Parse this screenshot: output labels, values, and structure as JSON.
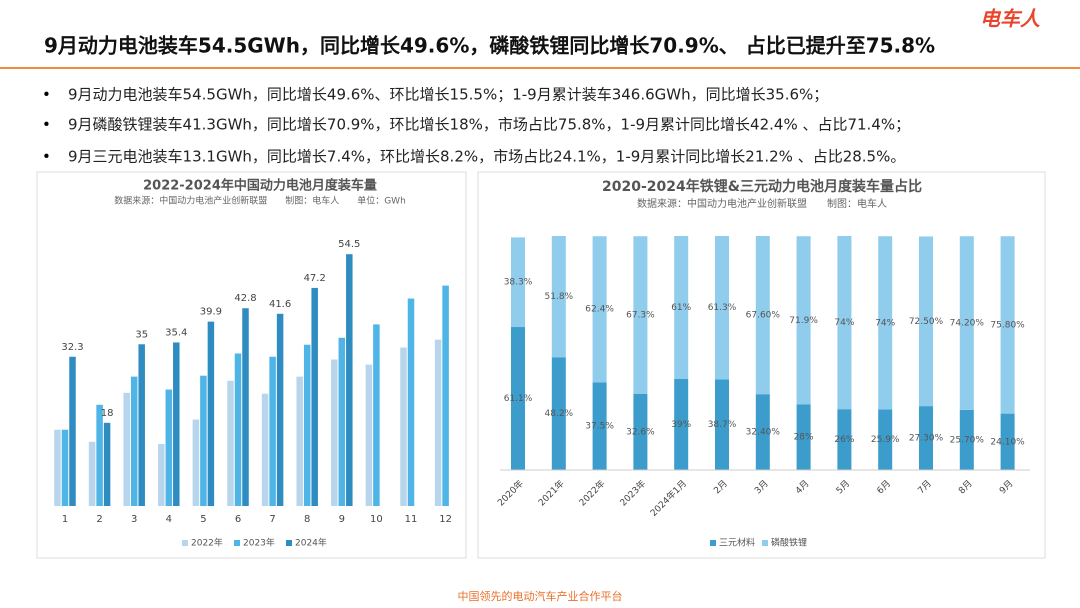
{
  "header": {
    "title": "9月动力电池装车54.5GWh，同比增长49.6%，磷酸铁锂同比增长70.9%、 占比已提升至75.8%",
    "logo": "电车人"
  },
  "bullets": [
    "9月动力电池装车54.5GWh，同比增长49.6%、环比增长15.5%；1-9月累计装车346.6GWh，同比增长35.6%；",
    "9月磷酸铁锂装车41.3GWh，同比增长70.9%，环比增长18%，市场占比75.8%，1-9月累计同比增长42.4% 、占比71.4%；",
    "9月三元电池装车13.1GWh，同比增长7.4%，环比增长8.2%，市场占比24.1%，1-9月累计同比增长21.2% 、占比28.5%。"
  ],
  "footer": "中国领先的电动汽车产业合作平台",
  "chart_data": [
    {
      "type": "bar",
      "title": "2022-2024年中国动力电池月度装车量",
      "subtitle": "数据来源：中国动力电池产业创新联盟　　制图：电车人　　单位：GWh",
      "categories": [
        "1",
        "2",
        "3",
        "4",
        "5",
        "6",
        "7",
        "8",
        "9",
        "10",
        "11",
        "12"
      ],
      "ylim": [
        0,
        58
      ],
      "series": [
        {
          "name": "2022年",
          "color": "#b7d5ec",
          "values": [
            16.5,
            13.9,
            24.5,
            13.4,
            18.7,
            27.1,
            24.3,
            28,
            31.7,
            30.6,
            34.3,
            36
          ]
        },
        {
          "name": "2023年",
          "color": "#4fb4e6",
          "values": [
            16.5,
            21.9,
            28,
            25.2,
            28.2,
            33,
            32.3,
            34.9,
            36.4,
            39.3,
            44.9,
            47.7
          ]
        },
        {
          "name": "2024年",
          "color": "#2f8cc1",
          "show_labels": true,
          "values": [
            32.3,
            18,
            35,
            35.4,
            39.9,
            42.8,
            41.6,
            47.2,
            54.5,
            null,
            null,
            null
          ]
        }
      ]
    },
    {
      "type": "stacked_bar",
      "title": "2020-2024年铁锂&三元动力电池月度装车量占比",
      "subtitle": "数据来源：中国动力电池产业创新联盟　　制图：电车人",
      "categories": [
        "2020年",
        "2021年",
        "2022年",
        "2023年",
        "2024年1月",
        "2月",
        "3月",
        "4月",
        "5月",
        "6月",
        "7月",
        "8月",
        "9月"
      ],
      "ylim": [
        0,
        100
      ],
      "series": [
        {
          "name": "三元材料",
          "color": "#3c9dcd",
          "values": [
            61.1,
            48.2,
            37.5,
            32.6,
            39,
            38.7,
            32.4,
            28,
            26,
            25.9,
            27.3,
            25.7,
            24.1
          ],
          "value_labels": [
            "61.1%",
            "48.2%",
            "37.5%",
            "32.6%",
            "39%",
            "38.7%",
            "32.40%",
            "28%",
            "26%",
            "25.9%",
            "27.30%",
            "25.70%",
            "24.10%"
          ]
        },
        {
          "name": "磷酸铁锂",
          "color": "#90ccec",
          "values": [
            38.3,
            51.8,
            62.4,
            67.3,
            61,
            61.3,
            67.6,
            71.9,
            74,
            74,
            72.5,
            74.2,
            75.8
          ],
          "value_labels": [
            "38.3%",
            "51.8%",
            "62.4%",
            "67.3%",
            "61%",
            "61.3%",
            "67.60%",
            "71.9%",
            "74%",
            "74%",
            "72.50%",
            "74.20%",
            "75.80%"
          ]
        }
      ]
    }
  ]
}
